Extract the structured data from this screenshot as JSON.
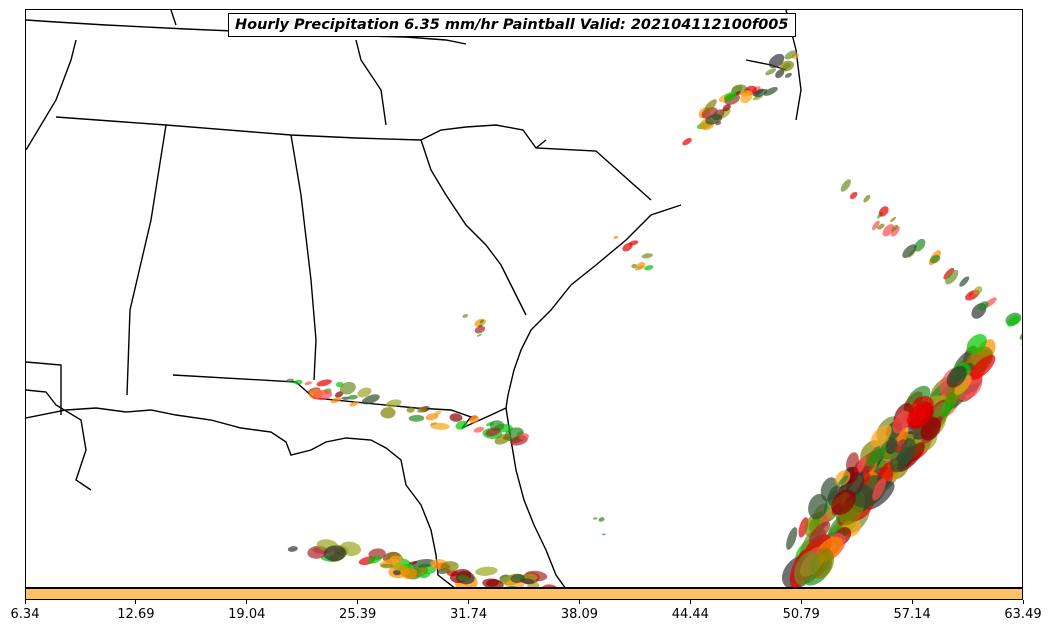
{
  "title": "Hourly Precipitation 6.35 mm/hr Paintball Valid: 202104112100f005",
  "colorbar": {
    "fill_color": "#ffc266",
    "ticks": [
      "6.34",
      "12.69",
      "19.04",
      "25.39",
      "31.74",
      "38.09",
      "44.44",
      "50.79",
      "57.14",
      "63.49"
    ]
  },
  "member_colors": [
    "#ff8c00",
    "#ffa31a",
    "#e60000",
    "#ff4d4d",
    "#8b0000",
    "#a52a2a",
    "#6b8e23",
    "#808000",
    "#9aa620",
    "#00c800",
    "#228b22",
    "#2f4f2f",
    "#333333"
  ]
}
